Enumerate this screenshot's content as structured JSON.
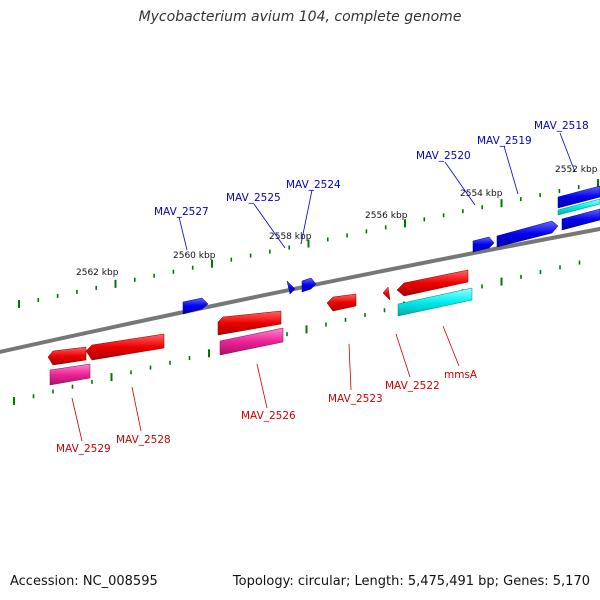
{
  "map": {
    "title": "Mycobacterium avium 104, complete genome",
    "accession_label": "Accession: NC_008595",
    "summary_label": "Topology: circular; Length: 5,475,491 bp; Genes: 5,170"
  },
  "ruler": {
    "ticks": [
      "2552 kbp",
      "2554 kbp",
      "2556 kbp",
      "2558 kbp",
      "2560 kbp",
      "2562 kbp"
    ]
  },
  "genes": [
    {
      "name": "MAV_2518",
      "strand": "forward",
      "product_color": "#00ffff"
    },
    {
      "name": "MAV_2519",
      "strand": "forward"
    },
    {
      "name": "MAV_2520",
      "strand": "forward"
    },
    {
      "name": "MAV_2524",
      "strand": "forward"
    },
    {
      "name": "MAV_2525",
      "strand": "forward"
    },
    {
      "name": "MAV_2527",
      "strand": "forward"
    },
    {
      "name": "mmsA",
      "strand": "reverse",
      "product_color": "#00ffff"
    },
    {
      "name": "MAV_2522",
      "strand": "reverse"
    },
    {
      "name": "MAV_2523",
      "strand": "reverse"
    },
    {
      "name": "MAV_2526",
      "strand": "reverse",
      "product_color": "#ff3399"
    },
    {
      "name": "MAV_2528",
      "strand": "reverse"
    },
    {
      "name": "MAV_2529",
      "strand": "reverse",
      "product_color": "#ff3399"
    }
  ],
  "colors": {
    "forward_gene": "#0000ee",
    "reverse_gene": "#ee0000",
    "backbone": "#888888",
    "tick": "#007700",
    "forward_label": "#0000cc",
    "reverse_label": "#cc0000"
  }
}
